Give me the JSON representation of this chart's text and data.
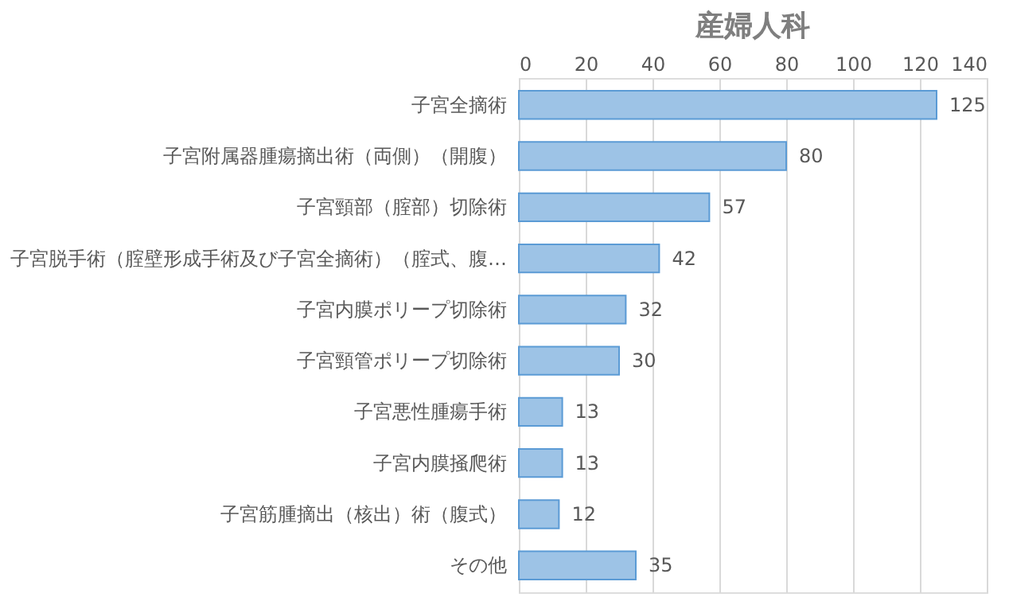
{
  "chart_data": {
    "type": "bar",
    "orientation": "horizontal",
    "title": "産婦人科",
    "categories": [
      "子宮全摘術",
      "子宮附属器腫瘍摘出術（両側）（開腹）",
      "子宮頸部（腟部）切除術",
      "子宮脱手術（腟壁形成手術及び子宮全摘術）（腟式、腹…",
      "子宮内膜ポリープ切除術",
      "子宮頸管ポリープ切除術",
      "子宮悪性腫瘍手術",
      "子宮内膜掻爬術",
      "子宮筋腫摘出（核出）術（腹式）",
      "その他"
    ],
    "values": [
      125,
      80,
      57,
      42,
      32,
      30,
      13,
      13,
      12,
      35
    ],
    "color": "#9dc3e6",
    "xlim": [
      0,
      140
    ],
    "xticks": [
      0,
      20,
      40,
      60,
      80,
      100,
      120,
      140
    ],
    "grid": "x",
    "data_labels": true
  }
}
